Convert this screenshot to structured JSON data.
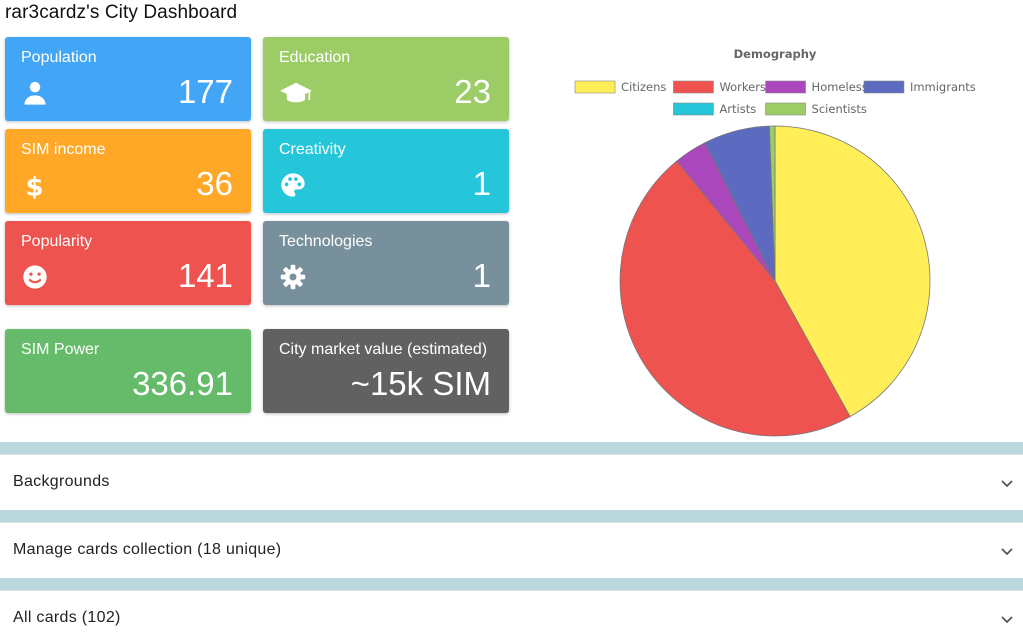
{
  "header": {
    "title": "rar3cardz's City Dashboard"
  },
  "tiles": [
    {
      "label": "Population",
      "value": "177",
      "icon": "person-icon",
      "color": "#42a5f5"
    },
    {
      "label": "Education",
      "value": "23",
      "icon": "graduation-cap-icon",
      "color": "#9ccc65"
    },
    {
      "label": "SIM income",
      "value": "36",
      "icon": "dollar-icon",
      "color": "#ffa726"
    },
    {
      "label": "Creativity",
      "value": "1",
      "icon": "palette-icon",
      "color": "#26c6da"
    },
    {
      "label": "Popularity",
      "value": "141",
      "icon": "smiley-icon",
      "color": "#ef5350"
    },
    {
      "label": "Technologies",
      "value": "1",
      "icon": "gear-icon",
      "color": "#78909c"
    },
    {
      "label": "SIM Power",
      "value": "336.91",
      "color": "#66bb6a"
    },
    {
      "label": "City market value (estimated)",
      "value": "~15k SIM",
      "color": "#616161"
    }
  ],
  "chart_data": {
    "type": "pie",
    "title": "Demography",
    "categories": [
      "Citizens",
      "Workers",
      "Homeless",
      "Immigrants",
      "Artists",
      "Scientists"
    ],
    "values": [
      73,
      82,
      6,
      12,
      0,
      1
    ],
    "colors": [
      "#ffee58",
      "#ef5350",
      "#ab47bc",
      "#5c6bc0",
      "#26c6da",
      "#9ccc65"
    ],
    "legend": "top"
  },
  "sections": [
    {
      "title": "Backgrounds"
    },
    {
      "title": "Manage cards collection (18 unique)"
    },
    {
      "title": "All cards (102)"
    }
  ]
}
